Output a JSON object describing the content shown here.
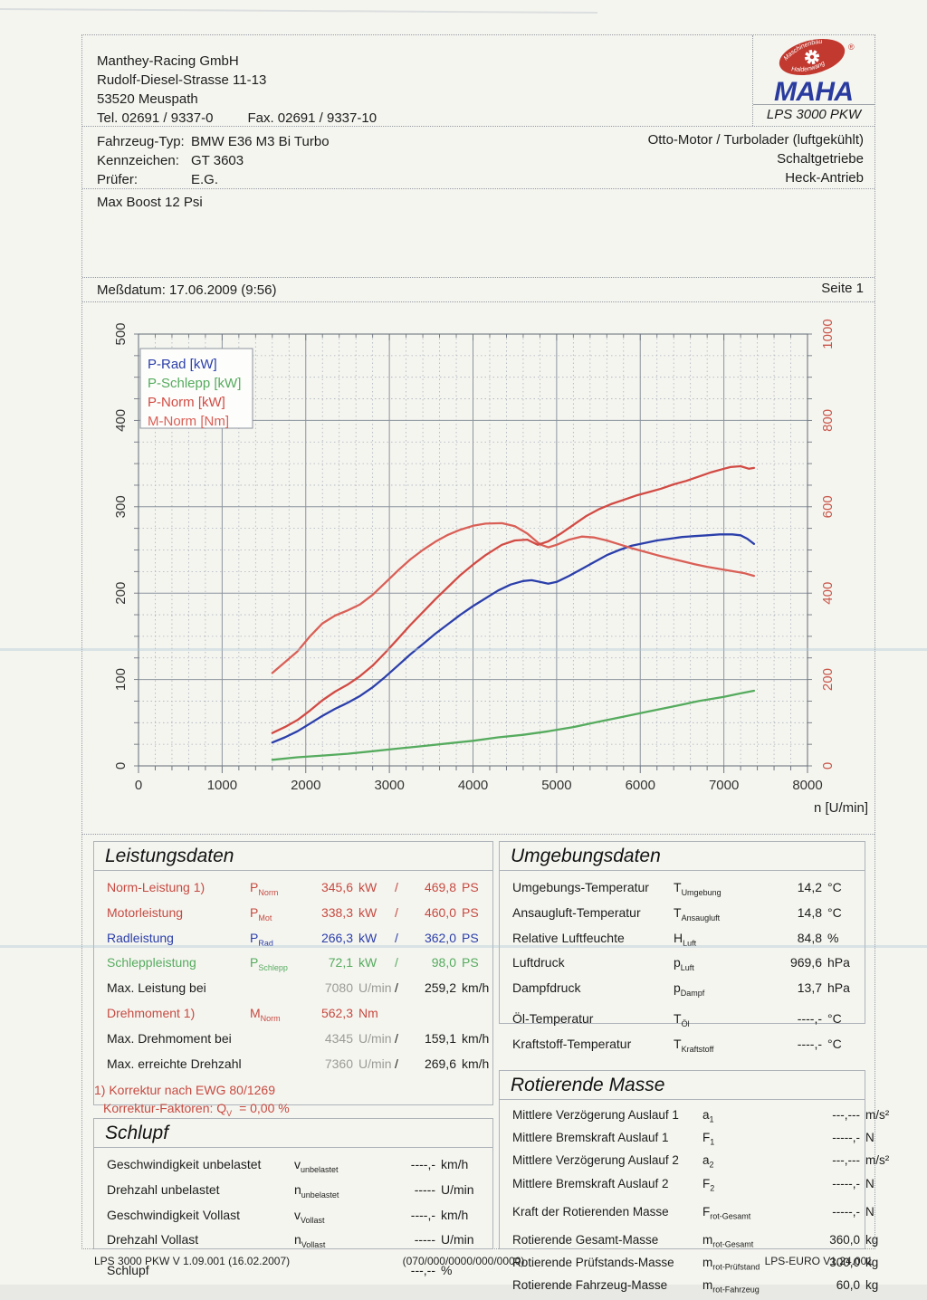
{
  "header": {
    "company_name": "Manthey-Racing GmbH",
    "address_line": "Rudolf-Diesel-Strasse 11-13",
    "city_line": "53520 Meuspath",
    "tel": "Tel. 02691 / 9337-0",
    "fax": "Fax. 02691 / 9337-10",
    "logo": {
      "brand": "MAHA",
      "ellipse_text_top": "Maschinenbau",
      "ellipse_text_bottom": "Haldenwang",
      "registered": "®",
      "model": "LPS 3000 PKW",
      "brand_color": "#2a3b9f",
      "ellipse_color": "#c2392f"
    }
  },
  "vehicle": {
    "rows": [
      {
        "label": "Fahrzeug-Typ:",
        "value": "BMW E36 M3 Bi Turbo"
      },
      {
        "label": "Kennzeichen:",
        "value": "GT 3603"
      },
      {
        "label": "Prüfer:",
        "value": "E.G."
      }
    ],
    "right": [
      "Otto-Motor / Turbolader (luftgekühlt)",
      "Schaltgetriebe",
      "Heck-Antrieb"
    ]
  },
  "remark": "Max Boost 12 Psi",
  "measurement": {
    "label": "Meßdatum:",
    "value": "17.06.2009 (9:56)",
    "page": "Seite 1"
  },
  "chart_data": {
    "type": "line",
    "title": "",
    "xlabel": "n [U/min]",
    "x_range": [
      0,
      8000
    ],
    "x_major": 1000,
    "x_minor": 200,
    "y_left": {
      "range": [
        0,
        500
      ],
      "major": 100,
      "minor": 25,
      "color": "#333333"
    },
    "y_right": {
      "range": [
        0,
        1000
      ],
      "major": 200,
      "minor": 50,
      "color": "#c8564a"
    },
    "grid": true,
    "legend_position": "top-left",
    "legend": [
      "P-Rad [kW]",
      "P-Schlepp [kW]",
      "P-Norm [kW]",
      "M-Norm [Nm]"
    ],
    "series": [
      {
        "name": "P-Rad [kW]",
        "axis": "left",
        "color": "#2b3faa",
        "points": [
          [
            1600,
            27
          ],
          [
            1750,
            33
          ],
          [
            1900,
            40
          ],
          [
            2050,
            49
          ],
          [
            2200,
            58
          ],
          [
            2350,
            66
          ],
          [
            2500,
            73
          ],
          [
            2650,
            81
          ],
          [
            2800,
            91
          ],
          [
            2950,
            103
          ],
          [
            3100,
            116
          ],
          [
            3250,
            129
          ],
          [
            3400,
            141
          ],
          [
            3550,
            153
          ],
          [
            3700,
            164
          ],
          [
            3850,
            175
          ],
          [
            4000,
            185
          ],
          [
            4150,
            194
          ],
          [
            4300,
            203
          ],
          [
            4450,
            210
          ],
          [
            4600,
            214
          ],
          [
            4700,
            215
          ],
          [
            4800,
            213
          ],
          [
            4900,
            211
          ],
          [
            5000,
            213
          ],
          [
            5150,
            220
          ],
          [
            5300,
            228
          ],
          [
            5450,
            236
          ],
          [
            5600,
            244
          ],
          [
            5750,
            250
          ],
          [
            5900,
            255
          ],
          [
            6050,
            258
          ],
          [
            6200,
            261
          ],
          [
            6350,
            263
          ],
          [
            6500,
            265
          ],
          [
            6650,
            266
          ],
          [
            6800,
            267
          ],
          [
            6950,
            268
          ],
          [
            7100,
            268
          ],
          [
            7200,
            267
          ],
          [
            7280,
            263
          ],
          [
            7360,
            257
          ]
        ]
      },
      {
        "name": "P-Schlepp [kW]",
        "axis": "left",
        "color": "#55ab5e",
        "points": [
          [
            1600,
            7
          ],
          [
            1900,
            10
          ],
          [
            2200,
            12
          ],
          [
            2500,
            14
          ],
          [
            2800,
            17
          ],
          [
            3100,
            20
          ],
          [
            3400,
            23
          ],
          [
            3700,
            26
          ],
          [
            4000,
            29
          ],
          [
            4300,
            33
          ],
          [
            4600,
            36
          ],
          [
            4900,
            40
          ],
          [
            5200,
            45
          ],
          [
            5500,
            51
          ],
          [
            5800,
            57
          ],
          [
            6100,
            63
          ],
          [
            6400,
            69
          ],
          [
            6700,
            75
          ],
          [
            7000,
            80
          ],
          [
            7200,
            84
          ],
          [
            7360,
            87
          ]
        ]
      },
      {
        "name": "P-Norm [kW]",
        "axis": "left",
        "color": "#d14b44",
        "points": [
          [
            1600,
            38
          ],
          [
            1750,
            45
          ],
          [
            1900,
            53
          ],
          [
            2050,
            64
          ],
          [
            2200,
            76
          ],
          [
            2350,
            86
          ],
          [
            2500,
            94
          ],
          [
            2650,
            104
          ],
          [
            2800,
            116
          ],
          [
            2950,
            131
          ],
          [
            3100,
            147
          ],
          [
            3250,
            163
          ],
          [
            3400,
            178
          ],
          [
            3550,
            193
          ],
          [
            3700,
            207
          ],
          [
            3850,
            221
          ],
          [
            4000,
            233
          ],
          [
            4150,
            244
          ],
          [
            4345,
            256
          ],
          [
            4500,
            261
          ],
          [
            4650,
            262
          ],
          [
            4775,
            256
          ],
          [
            4900,
            260
          ],
          [
            5050,
            269
          ],
          [
            5200,
            279
          ],
          [
            5350,
            289
          ],
          [
            5500,
            297
          ],
          [
            5650,
            303
          ],
          [
            5800,
            308
          ],
          [
            5950,
            313
          ],
          [
            6100,
            317
          ],
          [
            6250,
            321
          ],
          [
            6400,
            326
          ],
          [
            6550,
            330
          ],
          [
            6700,
            335
          ],
          [
            6850,
            340
          ],
          [
            7000,
            344
          ],
          [
            7080,
            346
          ],
          [
            7200,
            347
          ],
          [
            7300,
            344
          ],
          [
            7360,
            345
          ]
        ]
      },
      {
        "name": "M-Norm [Nm]",
        "axis": "right",
        "color": "#d96057",
        "points": [
          [
            1600,
            215
          ],
          [
            1750,
            240
          ],
          [
            1900,
            265
          ],
          [
            2050,
            300
          ],
          [
            2200,
            330
          ],
          [
            2350,
            348
          ],
          [
            2500,
            360
          ],
          [
            2650,
            374
          ],
          [
            2800,
            396
          ],
          [
            2950,
            424
          ],
          [
            3100,
            452
          ],
          [
            3250,
            478
          ],
          [
            3400,
            500
          ],
          [
            3550,
            519
          ],
          [
            3700,
            535
          ],
          [
            3850,
            547
          ],
          [
            4000,
            556
          ],
          [
            4150,
            561
          ],
          [
            4345,
            562
          ],
          [
            4500,
            555
          ],
          [
            4650,
            538
          ],
          [
            4800,
            513
          ],
          [
            4900,
            506
          ],
          [
            5000,
            512
          ],
          [
            5150,
            524
          ],
          [
            5300,
            531
          ],
          [
            5450,
            529
          ],
          [
            5600,
            522
          ],
          [
            5750,
            513
          ],
          [
            5900,
            504
          ],
          [
            6050,
            496
          ],
          [
            6200,
            488
          ],
          [
            6350,
            481
          ],
          [
            6500,
            474
          ],
          [
            6650,
            467
          ],
          [
            6800,
            461
          ],
          [
            6950,
            456
          ],
          [
            7100,
            451
          ],
          [
            7250,
            446
          ],
          [
            7360,
            440
          ]
        ]
      }
    ]
  },
  "leistungsdaten": {
    "title": "Leistungsdaten",
    "rows": [
      {
        "label": "Norm-Leistung 1)",
        "sym": "P",
        "sub": "Norm",
        "v1": "345,6",
        "u1": "kW",
        "sep": "/",
        "v2": "469,8",
        "u2": "PS",
        "cls": "red",
        "gap": false
      },
      {
        "label": "Motorleistung",
        "sym": "P",
        "sub": "Mot",
        "v1": "338,3",
        "u1": "kW",
        "sep": "/",
        "v2": "460,0",
        "u2": "PS",
        "cls": "red",
        "gap": false
      },
      {
        "label": "Radleistung",
        "sym": "P",
        "sub": "Rad",
        "v1": "266,3",
        "u1": "kW",
        "sep": "/",
        "v2": "362,0",
        "u2": "PS",
        "cls": "blue",
        "gap": false
      },
      {
        "label": "Schleppleistung",
        "sym": "P",
        "sub": "Schlepp",
        "v1": "72,1",
        "u1": "kW",
        "sep": "/",
        "v2": "98,0",
        "u2": "PS",
        "cls": "green",
        "gap": false
      },
      {
        "label": "Max. Leistung bei",
        "sym": "",
        "sub": "",
        "v1": "7080",
        "u1": "U/min",
        "sep": "/",
        "v2": "259,2",
        "u2": "km/h",
        "cls": "maxline",
        "gap": false
      },
      {
        "label": "Drehmoment 1)",
        "sym": "M",
        "sub": "Norm",
        "v1": "562,3",
        "u1": "Nm",
        "sep": "",
        "v2": "",
        "u2": "",
        "cls": "red",
        "gap": true
      },
      {
        "label": "Max. Drehmoment bei",
        "sym": "",
        "sub": "",
        "v1": "4345",
        "u1": "U/min",
        "sep": "/",
        "v2": "159,1",
        "u2": "km/h",
        "cls": "maxline",
        "gap": false
      },
      {
        "label": "Max. erreichte Drehzahl",
        "sym": "",
        "sub": "",
        "v1": "7360",
        "u1": "U/min",
        "sep": "/",
        "v2": "269,6",
        "u2": "km/h",
        "cls": "maxline",
        "gap": true
      }
    ],
    "footnote1": "1) Korrektur nach EWG 80/1269",
    "footnote2_pre": "Korrektur-Faktoren: Q",
    "footnote2_sub": "V",
    "footnote2_post": "=   0,00 %"
  },
  "umgebungsdaten": {
    "title": "Umgebungsdaten",
    "rows": [
      {
        "label": "Umgebungs-Temperatur",
        "sym": "T",
        "sub": "Umgebung",
        "v": "14,2",
        "u": "°C",
        "gap": false
      },
      {
        "label": "Ansaugluft-Temperatur",
        "sym": "T",
        "sub": "Ansaugluft",
        "v": "14,8",
        "u": "°C",
        "gap": false
      },
      {
        "label": "Relative Luftfeuchte",
        "sym": "H",
        "sub": "Luft",
        "v": "84,8",
        "u": "%",
        "gap": false
      },
      {
        "label": "Luftdruck",
        "sym": "p",
        "sub": "Luft",
        "v": "969,6",
        "u": "hPa",
        "gap": false
      },
      {
        "label": "Dampfdruck",
        "sym": "p",
        "sub": "Dampf",
        "v": "13,7",
        "u": "hPa",
        "gap": false
      },
      {
        "label": "Öl-Temperatur",
        "sym": "T",
        "sub": "Öl",
        "v": "----,-",
        "u": "°C",
        "gap": true
      },
      {
        "label": "Kraftstoff-Temperatur",
        "sym": "T",
        "sub": "Kraftstoff",
        "v": "----,-",
        "u": "°C",
        "gap": false
      }
    ]
  },
  "schlupf": {
    "title": "Schlupf",
    "rows": [
      {
        "label": "Geschwindigkeit unbelastet",
        "sym": "v",
        "sub": "unbelastet",
        "v": "----,-",
        "u": "km/h",
        "gap": false
      },
      {
        "label": "Drehzahl unbelastet",
        "sym": "n",
        "sub": "unbelastet",
        "v": "-----",
        "u": "U/min",
        "gap": false
      },
      {
        "label": "Geschwindigkeit Vollast",
        "sym": "v",
        "sub": "Vollast",
        "v": "----,-",
        "u": "km/h",
        "gap": false
      },
      {
        "label": "Drehzahl Vollast",
        "sym": "n",
        "sub": "Vollast",
        "v": "-----",
        "u": "U/min",
        "gap": false
      },
      {
        "label": "Schlupf",
        "sym": "",
        "sub": "",
        "v": "---,--",
        "u": "%",
        "gap": true
      }
    ]
  },
  "rotierende_masse": {
    "title": "Rotierende Masse",
    "rows": [
      {
        "label": "Mittlere Verzögerung Auslauf 1",
        "sym": "a",
        "sub": "1",
        "v": "---,---",
        "u": "m/s²",
        "gap": false
      },
      {
        "label": "Mittlere Bremskraft Auslauf 1",
        "sym": "F",
        "sub": "1",
        "v": "-----,-",
        "u": "N",
        "gap": false
      },
      {
        "label": "Mittlere Verzögerung Auslauf 2",
        "sym": "a",
        "sub": "2",
        "v": "---,---",
        "u": "m/s²",
        "gap": false
      },
      {
        "label": "Mittlere Bremskraft Auslauf 2",
        "sym": "F",
        "sub": "2",
        "v": "-----,-",
        "u": "N",
        "gap": false
      },
      {
        "label": "Kraft der Rotierenden Masse",
        "sym": "F",
        "sub": "rot-Gesamt",
        "v": "-----,-",
        "u": "N",
        "gap": true
      },
      {
        "label": "Rotierende Gesamt-Masse",
        "sym": "m",
        "sub": "rot-Gesamt",
        "v": "360,0",
        "u": "kg",
        "gap": true
      },
      {
        "label": "Rotierende Prüfstands-Masse",
        "sym": "m",
        "sub": "rot-Prüfstand",
        "v": "300,0",
        "u": "kg",
        "gap": false
      },
      {
        "label": "Rotierende Fahrzeug-Masse",
        "sym": "m",
        "sub": "rot-Fahrzeug",
        "v": "60,0",
        "u": "kg",
        "gap": false
      }
    ]
  },
  "footer": {
    "left": "LPS 3000 PKW V 1.09.001 (16.02.2007)",
    "center": "(070/000/0000/000/0000)",
    "right": "LPS-EURO V1.24.001"
  }
}
